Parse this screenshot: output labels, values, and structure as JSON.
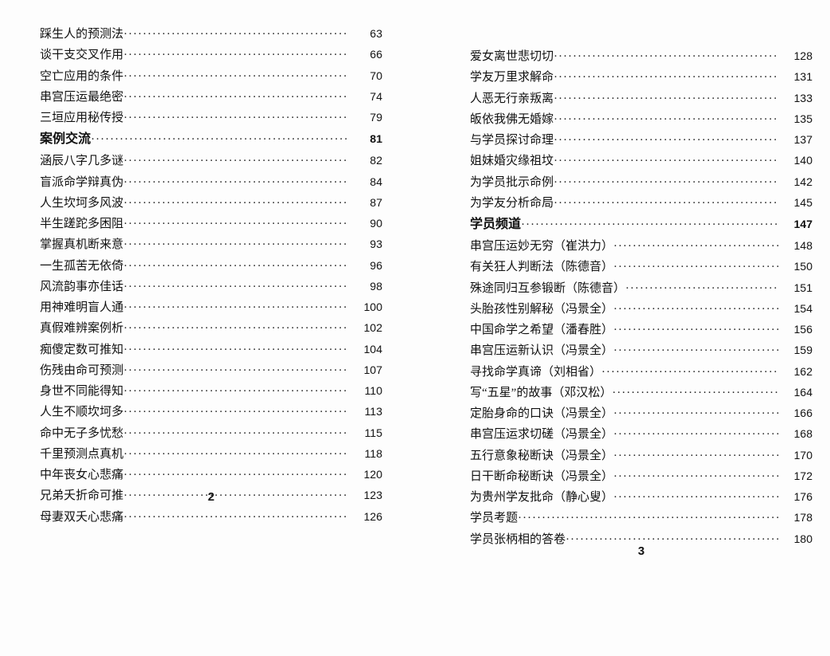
{
  "leftPage": {
    "number": "2",
    "lines": [
      {
        "title": "踩生人的预测法",
        "page": "63",
        "bold": false
      },
      {
        "title": "谈干支交叉作用",
        "page": "66",
        "bold": false
      },
      {
        "title": "空亡应用的条件",
        "page": "70",
        "bold": false
      },
      {
        "title": "串宫压运最绝密",
        "page": "74",
        "bold": false
      },
      {
        "title": "三垣应用秘传授",
        "page": "79",
        "bold": false
      },
      {
        "title": "案例交流",
        "page": "81",
        "bold": true
      },
      {
        "title": "涵辰八字几多谜",
        "page": "82",
        "bold": false
      },
      {
        "title": "盲派命学辩真伪",
        "page": "84",
        "bold": false
      },
      {
        "title": "人生坎坷多风波",
        "page": "87",
        "bold": false
      },
      {
        "title": "半生蹉跎多困阻",
        "page": "90",
        "bold": false
      },
      {
        "title": "掌握真机断来意",
        "page": "93",
        "bold": false
      },
      {
        "title": "一生孤苦无依倚",
        "page": "96",
        "bold": false
      },
      {
        "title": "风流韵事亦佳话",
        "page": "98",
        "bold": false
      },
      {
        "title": "用神难明盲人通",
        "page": "100",
        "bold": false
      },
      {
        "title": "真假难辨案例析",
        "page": "102",
        "bold": false
      },
      {
        "title": "痴傻定数可推知",
        "page": "104",
        "bold": false
      },
      {
        "title": "伤残由命可预测",
        "page": "107",
        "bold": false
      },
      {
        "title": "身世不同能得知",
        "page": "110",
        "bold": false
      },
      {
        "title": "人生不顺坎坷多",
        "page": "113",
        "bold": false
      },
      {
        "title": "命中无子多忧愁",
        "page": "115",
        "bold": false
      },
      {
        "title": "千里预测点真机",
        "page": "118",
        "bold": false
      },
      {
        "title": "中年丧女心悲痛",
        "page": "120",
        "bold": false
      },
      {
        "title": "兄弟夭折命可推",
        "page": "123",
        "bold": false
      },
      {
        "title": "母妻双夭心悲痛",
        "page": "126",
        "bold": false
      }
    ]
  },
  "rightPage": {
    "number": "3",
    "lines": [
      {
        "title": "爱女离世悲切切",
        "page": "128",
        "bold": false
      },
      {
        "title": "学友万里求解命",
        "page": "131",
        "bold": false
      },
      {
        "title": "人恶无行亲叛离",
        "page": "133",
        "bold": false
      },
      {
        "title": "皈依我佛无婚嫁",
        "page": "135",
        "bold": false
      },
      {
        "title": "与学员探讨命理",
        "page": "137",
        "bold": false
      },
      {
        "title": "姐妹婚灾缘祖坟",
        "page": "140",
        "bold": false
      },
      {
        "title": "为学员批示命例",
        "page": "142",
        "bold": false
      },
      {
        "title": "为学友分析命局",
        "page": "145",
        "bold": false
      },
      {
        "title": "学员频道",
        "page": "147",
        "bold": true
      },
      {
        "title": "串宫压运妙无穷（崔洪力）",
        "page": "148",
        "bold": false
      },
      {
        "title": "有关狂人判断法（陈德音）",
        "page": "150",
        "bold": false
      },
      {
        "title": "殊途同归互参锻断（陈德音）",
        "page": "151",
        "bold": false
      },
      {
        "title": "头胎孩性别解秘（冯景全）",
        "page": "154",
        "bold": false
      },
      {
        "title": "中国命学之希望（潘春胜）",
        "page": "156",
        "bold": false
      },
      {
        "title": "串宫压运新认识（冯景全）",
        "page": "159",
        "bold": false
      },
      {
        "title": "寻找命学真谛（刘相省）",
        "page": "162",
        "bold": false
      },
      {
        "title": "写“五星”的故事（邓汉松）",
        "page": "164",
        "bold": false
      },
      {
        "title": "定胎身命的口诀（冯景全）",
        "page": "166",
        "bold": false
      },
      {
        "title": "串宫压运求切磋（冯景全）",
        "page": "168",
        "bold": false
      },
      {
        "title": "五行意象秘断诀（冯景全）",
        "page": "170",
        "bold": false
      },
      {
        "title": "日干断命秘断诀（冯景全）",
        "page": "172",
        "bold": false
      },
      {
        "title": "为贵州学友批命（静心叟）",
        "page": "176",
        "bold": false
      },
      {
        "title": "学员考题",
        "page": "178",
        "bold": false
      },
      {
        "title": "学员张柄相的答卷",
        "page": "180",
        "bold": false
      }
    ]
  }
}
